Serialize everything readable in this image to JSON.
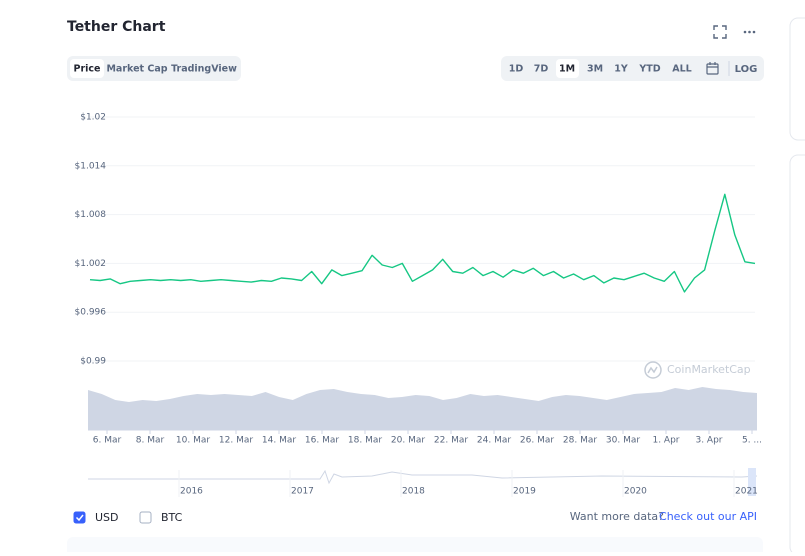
{
  "header": {
    "title": "Tether Chart"
  },
  "view_tabs": [
    "Price",
    "Market Cap",
    "TradingView"
  ],
  "range_buttons": [
    "1D",
    "7D",
    "1M",
    "3M",
    "1Y",
    "YTD",
    "ALL"
  ],
  "log_button": "LOG",
  "chart_data": {
    "type": "line",
    "watermark": "CoinMarketCap",
    "xtick_labels": [
      "6. Mar",
      "8. Mar",
      "10. Mar",
      "12. Mar",
      "14. Mar",
      "16. Mar",
      "18. Mar",
      "20. Mar",
      "22. Mar",
      "24. Mar",
      "26. Mar",
      "28. Mar",
      "30. Mar",
      "1. Apr",
      "3. Apr",
      "5. ..."
    ],
    "series": [
      {
        "name": "Price",
        "color": "#16c784",
        "values": [
          1.0,
          0.9999,
          1.0001,
          0.9995,
          0.9998,
          0.9999,
          1.0,
          0.9999,
          1.0,
          0.9999,
          1.0,
          0.9998,
          0.9999,
          1.0,
          0.9999,
          0.9998,
          0.9997,
          0.9999,
          0.9998,
          1.0002,
          1.0001,
          0.9999,
          1.001,
          0.9995,
          1.0012,
          1.0005,
          1.0008,
          1.0011,
          1.003,
          1.0018,
          1.0015,
          1.002,
          0.9998,
          1.0005,
          1.0012,
          1.0025,
          1.001,
          1.0008,
          1.0015,
          1.0005,
          1.001,
          1.0003,
          1.0012,
          1.0008,
          1.0014,
          1.0005,
          1.001,
          1.0002,
          1.0007,
          1.0,
          1.0005,
          0.9996,
          1.0002,
          1.0,
          1.0004,
          1.0008,
          1.0002,
          0.9998,
          1.001,
          0.9985,
          1.0002,
          1.0012,
          1.006,
          1.0105,
          1.0055,
          1.0022,
          1.002
        ]
      }
    ],
    "volume": {
      "color": "#cfd6e4",
      "ylim": [
        0,
        50
      ],
      "values": [
        40,
        36,
        30,
        28,
        30,
        29,
        31,
        34,
        36,
        35,
        36,
        35,
        34,
        38,
        33,
        30,
        36,
        40,
        41,
        38,
        36,
        35,
        32,
        33,
        35,
        34,
        30,
        32,
        36,
        34,
        35,
        33,
        31,
        29,
        33,
        35,
        34,
        32,
        30,
        33,
        36,
        37,
        38,
        42,
        40,
        43,
        41,
        40,
        38,
        37
      ]
    },
    "ylim": [
      0.99,
      1.02
    ],
    "yticks": [
      {
        "value": 0.99,
        "label": "$0.99"
      },
      {
        "value": 0.996,
        "label": "$0.996"
      },
      {
        "value": 1.002,
        "label": "$1.002"
      },
      {
        "value": 1.008,
        "label": "$1.008"
      },
      {
        "value": 1.014,
        "label": "$1.014"
      },
      {
        "value": 1.02,
        "label": "$1.02"
      }
    ],
    "grid": true
  },
  "navigator": {
    "years": [
      "2016",
      "2017",
      "2018",
      "2019",
      "2020",
      "2021"
    ]
  },
  "footer": {
    "currencies": [
      {
        "label": "USD",
        "checked": true
      },
      {
        "label": "BTC",
        "checked": false
      }
    ],
    "api_prompt": "Want more data?",
    "api_link": "Check out our API"
  }
}
